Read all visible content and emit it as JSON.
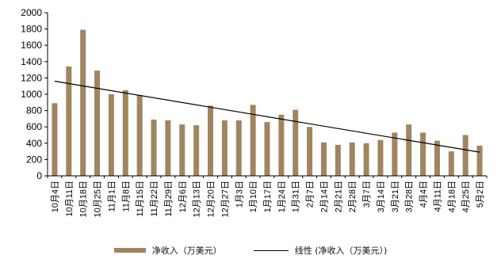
{
  "chart_data": {
    "type": "bar",
    "categories": [
      "10月4日",
      "10月11日",
      "10月18日",
      "10月25日",
      "11月1日",
      "11月8日",
      "11月15日",
      "11月22日",
      "11月29日",
      "12月6日",
      "12月13日",
      "12月20日",
      "12月27日",
      "1月3日",
      "1月10日",
      "1月17日",
      "1月24日",
      "1月31日",
      "2月7日",
      "2月14日",
      "2月21日",
      "2月28日",
      "3月7日",
      "3月14日",
      "3月21日",
      "3月28日",
      "4月4日",
      "4月11日",
      "4月18日",
      "4月25日",
      "5月2日"
    ],
    "series": [
      {
        "name": "净收入（万美元）",
        "values": [
          890,
          1340,
          1790,
          1290,
          1000,
          1050,
          990,
          690,
          680,
          630,
          620,
          860,
          680,
          680,
          870,
          660,
          750,
          810,
          600,
          410,
          380,
          410,
          400,
          440,
          530,
          630,
          530,
          430,
          300,
          500,
          370
        ]
      }
    ],
    "trendline": {
      "name": "线性 (净收入（万美元）)",
      "start": 1160,
      "end": 290
    },
    "ylim": [
      0,
      2000
    ],
    "yticks": [
      "0",
      "200",
      "400",
      "600",
      "800",
      "1000",
      "1200",
      "1400",
      "1600",
      "1800",
      "2000"
    ],
    "grid": false,
    "legend_position": "bottom",
    "colors": {
      "bar": "#a08560",
      "trendline": "#000000",
      "axis": "#000000"
    }
  }
}
